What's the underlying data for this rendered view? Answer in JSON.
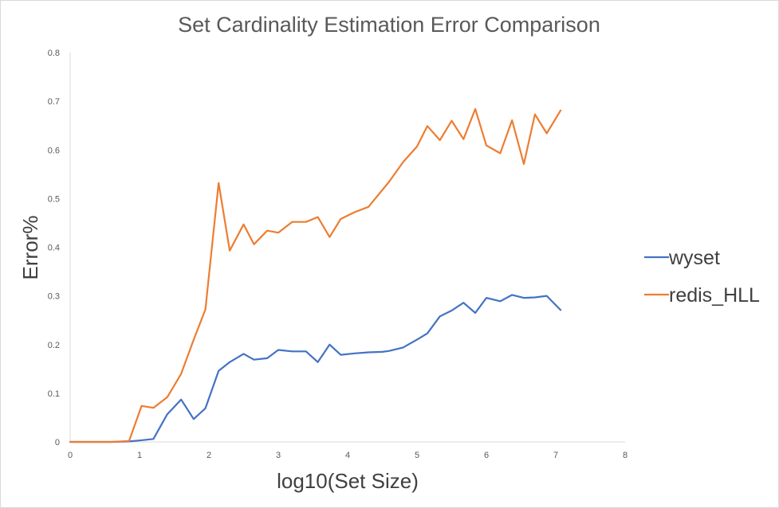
{
  "chart_data": {
    "type": "line",
    "title": "Set Cardinality Estimation Error Comparison",
    "xlabel": "log10(Set Size)",
    "ylabel": "Error%",
    "xlim": [
      0,
      8
    ],
    "ylim": [
      0,
      0.8
    ],
    "x_ticks": [
      "0",
      "1",
      "2",
      "3",
      "4",
      "5",
      "6",
      "7",
      "8"
    ],
    "y_ticks": [
      "0",
      "0.1",
      "0.2",
      "0.3",
      "0.4",
      "0.5",
      "0.6",
      "0.7",
      "0.8"
    ],
    "grid": false,
    "legend_position": "right",
    "series": [
      {
        "name": "wyset",
        "color": "#4472C4",
        "points": [
          [
            0,
            0
          ],
          [
            0.3,
            0.0
          ],
          [
            0.6,
            0.0
          ],
          [
            0.85,
            0.001
          ],
          [
            1.0,
            0.003
          ],
          [
            1.2,
            0.006
          ],
          [
            1.4,
            0.057
          ],
          [
            1.6,
            0.087
          ],
          [
            1.78,
            0.047
          ],
          [
            1.95,
            0.069
          ],
          [
            2.14,
            0.146
          ],
          [
            2.3,
            0.164
          ],
          [
            2.5,
            0.181
          ],
          [
            2.65,
            0.169
          ],
          [
            2.84,
            0.172
          ],
          [
            3.0,
            0.189
          ],
          [
            3.2,
            0.186
          ],
          [
            3.4,
            0.186
          ],
          [
            3.57,
            0.164
          ],
          [
            3.74,
            0.2
          ],
          [
            3.9,
            0.179
          ],
          [
            4.1,
            0.182
          ],
          [
            4.3,
            0.184
          ],
          [
            4.5,
            0.185
          ],
          [
            4.6,
            0.187
          ],
          [
            4.8,
            0.194
          ],
          [
            5.0,
            0.21
          ],
          [
            5.15,
            0.223
          ],
          [
            5.33,
            0.258
          ],
          [
            5.5,
            0.27
          ],
          [
            5.67,
            0.286
          ],
          [
            5.84,
            0.265
          ],
          [
            6.0,
            0.296
          ],
          [
            6.2,
            0.289
          ],
          [
            6.37,
            0.302
          ],
          [
            6.54,
            0.296
          ],
          [
            6.7,
            0.297
          ],
          [
            6.87,
            0.3
          ],
          [
            7.07,
            0.271
          ]
        ]
      },
      {
        "name": "redis_HLL",
        "color": "#ED7D31",
        "points": [
          [
            0,
            0
          ],
          [
            0.3,
            0.0
          ],
          [
            0.6,
            0.0
          ],
          [
            0.85,
            0.002
          ],
          [
            1.03,
            0.074
          ],
          [
            1.2,
            0.07
          ],
          [
            1.4,
            0.092
          ],
          [
            1.6,
            0.14
          ],
          [
            1.78,
            0.21
          ],
          [
            1.95,
            0.272
          ],
          [
            2.14,
            0.532
          ],
          [
            2.3,
            0.393
          ],
          [
            2.5,
            0.447
          ],
          [
            2.65,
            0.406
          ],
          [
            2.84,
            0.434
          ],
          [
            3.0,
            0.43
          ],
          [
            3.2,
            0.452
          ],
          [
            3.4,
            0.452
          ],
          [
            3.57,
            0.462
          ],
          [
            3.74,
            0.421
          ],
          [
            3.9,
            0.458
          ],
          [
            4.1,
            0.472
          ],
          [
            4.3,
            0.483
          ],
          [
            4.6,
            0.535
          ],
          [
            4.8,
            0.575
          ],
          [
            5.0,
            0.607
          ],
          [
            5.15,
            0.649
          ],
          [
            5.33,
            0.62
          ],
          [
            5.5,
            0.66
          ],
          [
            5.67,
            0.622
          ],
          [
            5.84,
            0.684
          ],
          [
            6.0,
            0.609
          ],
          [
            6.2,
            0.593
          ],
          [
            6.37,
            0.661
          ],
          [
            6.54,
            0.571
          ],
          [
            6.7,
            0.673
          ],
          [
            6.87,
            0.634
          ],
          [
            7.07,
            0.681
          ]
        ]
      }
    ]
  }
}
